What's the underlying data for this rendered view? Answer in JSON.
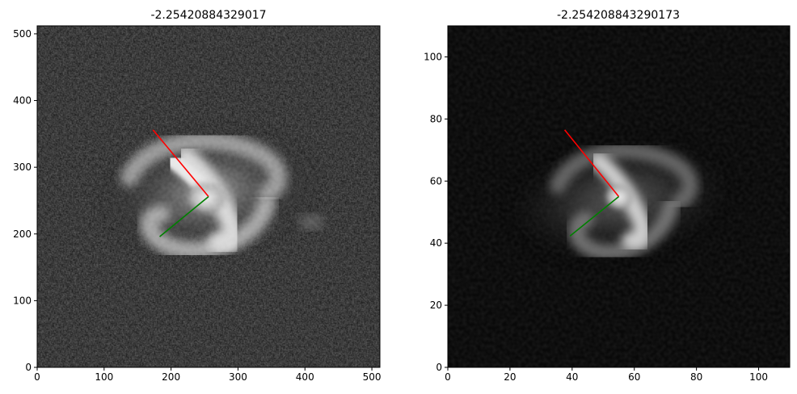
{
  "chart_data": [
    {
      "type": "heatmap",
      "title": "-2.25420884329017",
      "image": "grayscale barred spiral galaxy",
      "xlim": [
        0,
        512
      ],
      "ylim": [
        0,
        512
      ],
      "xticks": [
        0,
        100,
        200,
        300,
        400,
        500
      ],
      "yticks": [
        0,
        100,
        200,
        300,
        400,
        500
      ],
      "center": [
        256,
        256
      ],
      "lines": [
        {
          "color": "#ff0000",
          "x": [
            256,
            173
          ],
          "y": [
            256,
            356
          ]
        },
        {
          "color": "#008000",
          "x": [
            256,
            183
          ],
          "y": [
            256,
            196
          ]
        }
      ]
    },
    {
      "type": "heatmap",
      "title": "-2.254208843290173",
      "image": "grayscale barred spiral galaxy",
      "xlim": [
        0,
        110
      ],
      "ylim": [
        0,
        110
      ],
      "xticks": [
        0,
        20,
        40,
        60,
        80,
        100
      ],
      "yticks": [
        0,
        20,
        40,
        60,
        80,
        100
      ],
      "center": [
        55,
        55
      ],
      "lines": [
        {
          "color": "#ff0000",
          "x": [
            55,
            37.6
          ],
          "y": [
            55,
            76.5
          ]
        },
        {
          "color": "#008000",
          "x": [
            55,
            39.3
          ],
          "y": [
            55,
            42.3
          ]
        }
      ]
    }
  ]
}
